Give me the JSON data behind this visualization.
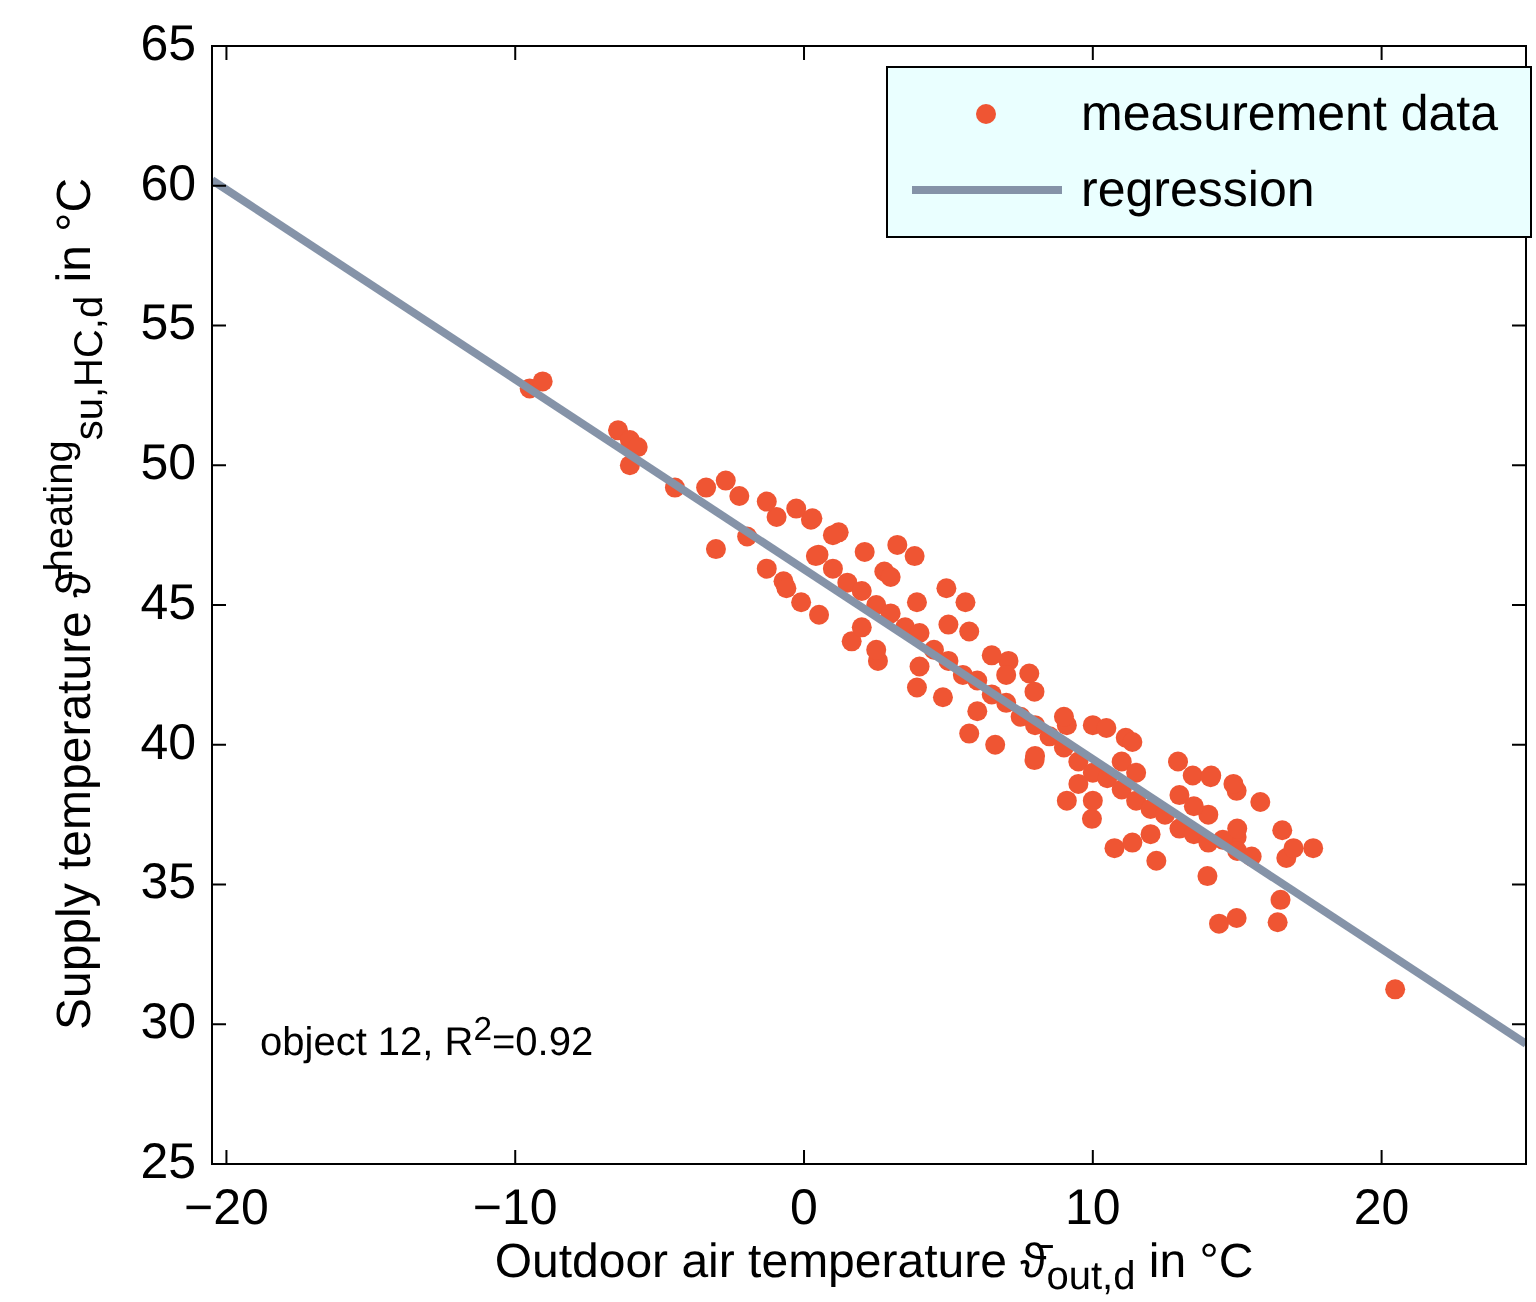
{
  "chart_data": {
    "type": "scatter",
    "xlabel": "Outdoor air temperature ϑ̄$_{out,d}$ in °C",
    "ylabel": "Supply temperature ϑ̄$^{heating}$$_{su,HC,d}$ in °C",
    "xlim": [
      -20.5,
      25
    ],
    "ylim": [
      25,
      65
    ],
    "xticks": [
      {
        "value": -20,
        "label": "−20"
      },
      {
        "value": -10,
        "label": "−10"
      },
      0,
      10,
      20
    ],
    "yticks": [
      25,
      30,
      35,
      40,
      45,
      50,
      55,
      60,
      65
    ],
    "legend": "top right",
    "annotations": [
      "object 12, R$^{2}$=0.92"
    ],
    "series": [
      {
        "name": "measurement data",
        "type": "scatter",
        "marker": "circle",
        "color": "#ef5533",
        "x": [
          -9.5,
          -9.05,
          -6.44,
          -6.03,
          -5.76,
          -6.03,
          -4.47,
          -3.39,
          -2.71,
          -3.05,
          -2.24,
          -1.97,
          -0.95,
          -0.71,
          0.24,
          0.41,
          -0.1,
          3.83,
          5.59,
          7.8,
          9.97,
          10.75,
          12.2,
          13.97,
          14.37,
          14.98,
          16.4,
          16.5,
          16.7,
          16.95,
          17.63,
          20.47,
          15.8,
          14.98,
          13.46,
          14.1,
          -1.29,
          -0.27,
          0.29,
          1.2,
          2.1,
          3.23,
          2.78,
          3.91,
          4.93,
          5.72,
          7.08,
          7.98,
          9.1,
          10.0,
          11.14,
          -1.29,
          -0.61,
          0.52,
          1.65,
          2.56,
          3.91,
          4.81,
          5.72,
          6.62,
          7.98,
          9.1,
          11.37,
          10.47,
          11.37,
          12.95,
          14.08,
          14.87,
          14.98,
          16.56,
          0.5,
          1,
          1.5,
          2,
          2.5,
          3,
          3.5,
          4,
          4.5,
          5,
          5.5,
          6,
          6.5,
          7,
          7.5,
          8,
          8.5,
          9,
          9.5,
          10,
          10.5,
          11,
          11.5,
          12,
          12.5,
          13,
          13.5,
          14,
          14.5,
          15,
          15.5,
          1,
          2,
          3,
          4,
          5,
          6,
          7,
          8,
          9,
          10,
          11,
          12,
          13,
          14,
          15,
          2.5,
          6.5,
          9.5,
          11.5,
          13.5
        ],
        "values": [
          52.75,
          53.0,
          51.25,
          50.9,
          50.65,
          50.0,
          49.2,
          49.2,
          49.45,
          47.0,
          48.9,
          47.45,
          48.15,
          45.85,
          48.05,
          46.75,
          45.1,
          46.75,
          45.1,
          42.55,
          37.35,
          36.3,
          35.85,
          35.3,
          33.6,
          33.8,
          33.65,
          34.45,
          35.95,
          36.3,
          36.3,
          31.25,
          37.95,
          38.35,
          38.9,
          38.9,
          48.7,
          48.45,
          48.1,
          47.6,
          46.9,
          47.15,
          46.2,
          45.1,
          45.6,
          44.05,
          43.0,
          41.9,
          40.7,
          40.7,
          40.25,
          46.3,
          45.6,
          44.65,
          43.7,
          43.0,
          42.05,
          41.7,
          40.4,
          40.0,
          39.45,
          38.0,
          36.5,
          40.6,
          40.1,
          39.4,
          38.84,
          38.6,
          36.7,
          36.94,
          46.8,
          46.3,
          45.8,
          45.5,
          45.0,
          44.7,
          44.2,
          44.0,
          43.4,
          43.0,
          42.5,
          42.3,
          41.8,
          41.5,
          41.0,
          40.7,
          40.3,
          39.9,
          39.4,
          39.0,
          38.8,
          38.4,
          38.0,
          37.7,
          37.5,
          37.0,
          36.8,
          36.5,
          36.6,
          36.2,
          36.0,
          47.5,
          44.2,
          46.0,
          42.8,
          44.3,
          41.2,
          42.5,
          39.6,
          41.0,
          38.0,
          39.4,
          36.8,
          38.2,
          37.5,
          37.0,
          43.4,
          43.2,
          38.6,
          39.0,
          37.8
        ]
      },
      {
        "name": "regression",
        "type": "line",
        "marker": "none",
        "color": "#8593a8",
        "x": [
          -20.5,
          25
        ],
        "values": [
          60.2,
          29.3
        ]
      }
    ]
  }
}
